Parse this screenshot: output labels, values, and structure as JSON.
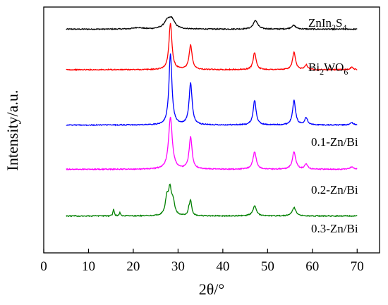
{
  "chart_data": {
    "type": "line",
    "xlabel": "2θ/°",
    "ylabel": "Intensity/a.u.",
    "xlim": [
      0,
      75
    ],
    "x_ticks": [
      0,
      10,
      20,
      30,
      40,
      50,
      60,
      70
    ],
    "y_tick_labels": "none",
    "grid": false,
    "legend": "inline labels, right side",
    "series": [
      {
        "name": "ZnIn2S4",
        "label_main": "ZnIn",
        "label_sub1": "2",
        "label_mid": "S",
        "label_sub2": "4",
        "color": "#000000",
        "baseline": 0.09,
        "peaks": [
          {
            "x": 21.0,
            "h": 0.006,
            "w": 1.2
          },
          {
            "x": 27.6,
            "h": 0.03,
            "w": 0.9
          },
          {
            "x": 28.6,
            "h": 0.035,
            "w": 0.8
          },
          {
            "x": 47.3,
            "h": 0.035,
            "w": 0.6
          },
          {
            "x": 55.8,
            "h": 0.015,
            "w": 0.6
          }
        ]
      },
      {
        "name": "Bi2WO6",
        "label_main": "Bi",
        "label_sub1": "2",
        "label_mid": "WO",
        "label_sub2": "6",
        "color": "#ff0000",
        "baseline": 0.255,
        "peaks": [
          {
            "x": 28.3,
            "h": 0.19,
            "w": 0.4
          },
          {
            "x": 32.8,
            "h": 0.1,
            "w": 0.4
          },
          {
            "x": 47.1,
            "h": 0.07,
            "w": 0.4
          },
          {
            "x": 55.9,
            "h": 0.07,
            "w": 0.4
          },
          {
            "x": 58.6,
            "h": 0.02,
            "w": 0.4
          },
          {
            "x": 68.8,
            "h": 0.01,
            "w": 0.4
          }
        ]
      },
      {
        "name": "0.1-Zn/Bi",
        "color": "#0000ff",
        "baseline": 0.48,
        "peaks": [
          {
            "x": 28.3,
            "h": 0.29,
            "w": 0.4
          },
          {
            "x": 32.8,
            "h": 0.17,
            "w": 0.4
          },
          {
            "x": 47.1,
            "h": 0.1,
            "w": 0.4
          },
          {
            "x": 55.9,
            "h": 0.1,
            "w": 0.4
          },
          {
            "x": 58.6,
            "h": 0.03,
            "w": 0.4
          },
          {
            "x": 68.8,
            "h": 0.01,
            "w": 0.4
          }
        ]
      },
      {
        "name": "0.2-Zn/Bi",
        "color": "#ff00ff",
        "baseline": 0.66,
        "peaks": [
          {
            "x": 28.3,
            "h": 0.21,
            "w": 0.5
          },
          {
            "x": 32.8,
            "h": 0.13,
            "w": 0.4
          },
          {
            "x": 47.1,
            "h": 0.07,
            "w": 0.45
          },
          {
            "x": 55.9,
            "h": 0.07,
            "w": 0.45
          },
          {
            "x": 58.6,
            "h": 0.02,
            "w": 0.4
          },
          {
            "x": 68.8,
            "h": 0.01,
            "w": 0.4
          }
        ]
      },
      {
        "name": "0.3-Zn/Bi",
        "color": "#008000",
        "baseline": 0.85,
        "peaks": [
          {
            "x": 15.6,
            "h": 0.03,
            "w": 0.15
          },
          {
            "x": 17.0,
            "h": 0.015,
            "w": 0.15
          },
          {
            "x": 27.5,
            "h": 0.07,
            "w": 0.4
          },
          {
            "x": 28.2,
            "h": 0.1,
            "w": 0.4
          },
          {
            "x": 28.9,
            "h": 0.05,
            "w": 0.4
          },
          {
            "x": 32.4,
            "h": 0.02,
            "w": 0.2
          },
          {
            "x": 32.8,
            "h": 0.06,
            "w": 0.3
          },
          {
            "x": 47.1,
            "h": 0.04,
            "w": 0.5
          },
          {
            "x": 55.9,
            "h": 0.035,
            "w": 0.5
          }
        ]
      }
    ]
  }
}
